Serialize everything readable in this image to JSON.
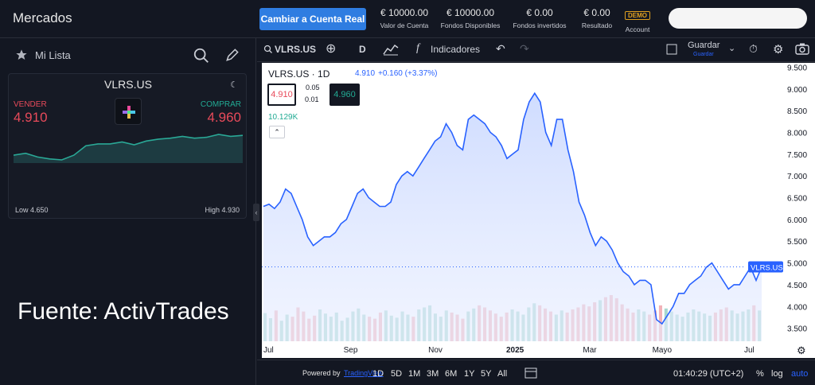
{
  "header": {
    "app_title": "Mercados",
    "cta_label": "Cambiar a Cuenta Real",
    "stats": [
      {
        "value": "€ 10000.00",
        "label": "Valor de Cuenta"
      },
      {
        "value": "€ 10000.00",
        "label": "Fondos Disponibles"
      },
      {
        "value": "€ 0.00",
        "label": "Fondos invertidos"
      },
      {
        "value": "€ 0.00",
        "label": "Resultado"
      }
    ],
    "account_badge": "DEMO",
    "account_label": "Account"
  },
  "sidebar": {
    "list_title": "Mi Lista",
    "card": {
      "symbol": "VLRS.US",
      "sell_label": "VENDER",
      "sell_price": "4.910",
      "buy_label": "COMPRAR",
      "buy_price": "4.960",
      "low": "Low 4.650",
      "high": "High 4.930",
      "sparkline": [
        4.7,
        4.72,
        4.68,
        4.66,
        4.65,
        4.7,
        4.8,
        4.82,
        4.82,
        4.84,
        4.81,
        4.85,
        4.87,
        4.88,
        4.9,
        4.88,
        4.89,
        4.92,
        4.9,
        4.91
      ]
    },
    "source_text": "Fuente: ActivTrades"
  },
  "toolbar": {
    "symbol": "VLRS.US",
    "interval": "D",
    "indicators": "Indicadores",
    "save": "Guardar",
    "save_sub": "Guardar"
  },
  "chart_legend": {
    "title": "VLRS.US · 1D",
    "price": "4.910",
    "change": "+0.160 (+3.37%)",
    "sell": "4.910",
    "spread_top": "0.05",
    "spread_bottom": "0.01",
    "buy": "4.960",
    "volume": "10.129K",
    "last_label": "VLRS.US"
  },
  "bottom": {
    "powered_by": "Powered by",
    "tv_link": "TradingView",
    "ranges": [
      "1D",
      "5D",
      "1M",
      "3M",
      "6M",
      "1Y",
      "5Y",
      "All"
    ],
    "time": "01:40:29 (UTC+2)",
    "percent": "%",
    "log": "log",
    "auto": "auto"
  },
  "colors": {
    "accent": "#2f7de1",
    "sell": "#e84a5a",
    "buy": "#22ab94",
    "line": "#2962ff"
  },
  "chart_data": {
    "type": "area",
    "x_ticks": [
      "Jul",
      "Sep",
      "Nov",
      "2025",
      "Mar",
      "Mayo",
      "Jul"
    ],
    "y_ticks": [
      3.5,
      4.0,
      4.5,
      5.0,
      5.5,
      6.0,
      6.5,
      7.0,
      7.5,
      8.0,
      8.5,
      9.0,
      9.5
    ],
    "ylim": [
      3.2,
      9.6
    ],
    "last_value": 4.91,
    "series": [
      {
        "values": [
          6.3,
          6.35,
          6.25,
          6.4,
          6.7,
          6.6,
          6.3,
          6.0,
          5.6,
          5.4,
          5.5,
          5.6,
          5.6,
          5.7,
          5.9,
          6.0,
          6.3,
          6.6,
          6.7,
          6.5,
          6.4,
          6.3,
          6.3,
          6.4,
          6.8,
          7.0,
          7.1,
          7.0,
          7.2,
          7.4,
          7.6,
          7.8,
          7.9,
          8.2,
          8.0,
          7.7,
          7.6,
          8.3,
          8.4,
          8.3,
          8.2,
          8.0,
          7.9,
          7.7,
          7.4,
          7.5,
          7.6,
          8.3,
          8.7,
          8.9,
          8.7,
          8.0,
          7.7,
          8.3,
          8.3,
          7.6,
          7.1,
          6.4,
          6.1,
          5.7,
          5.4,
          5.6,
          5.5,
          5.3,
          5.0,
          4.8,
          4.7,
          4.5,
          4.6,
          4.6,
          4.5,
          3.7,
          3.6,
          3.8,
          4.0,
          4.3,
          4.3,
          4.5,
          4.6,
          4.7,
          4.9,
          5.0,
          4.8,
          4.6,
          4.4,
          4.5,
          4.5,
          4.7,
          4.9,
          4.6,
          4.91
        ]
      }
    ],
    "volume": [
      55,
      45,
      60,
      40,
      52,
      48,
      66,
      58,
      44,
      50,
      62,
      54,
      48,
      56,
      40,
      46,
      58,
      64,
      52,
      48,
      44,
      56,
      60,
      50,
      46,
      58,
      52,
      48,
      62,
      66,
      70,
      54,
      48,
      60,
      56,
      52,
      44,
      58,
      64,
      70,
      66,
      60,
      54,
      48,
      56,
      62,
      58,
      52,
      66,
      74,
      70,
      64,
      58,
      52,
      60,
      56,
      62,
      66,
      72,
      68,
      76,
      80,
      86,
      90,
      84,
      72,
      64,
      56,
      62,
      58,
      52,
      60,
      70,
      64,
      58,
      52,
      48,
      56,
      62,
      58,
      54,
      50,
      56,
      62,
      66,
      60,
      54,
      58,
      62,
      70,
      60
    ]
  }
}
